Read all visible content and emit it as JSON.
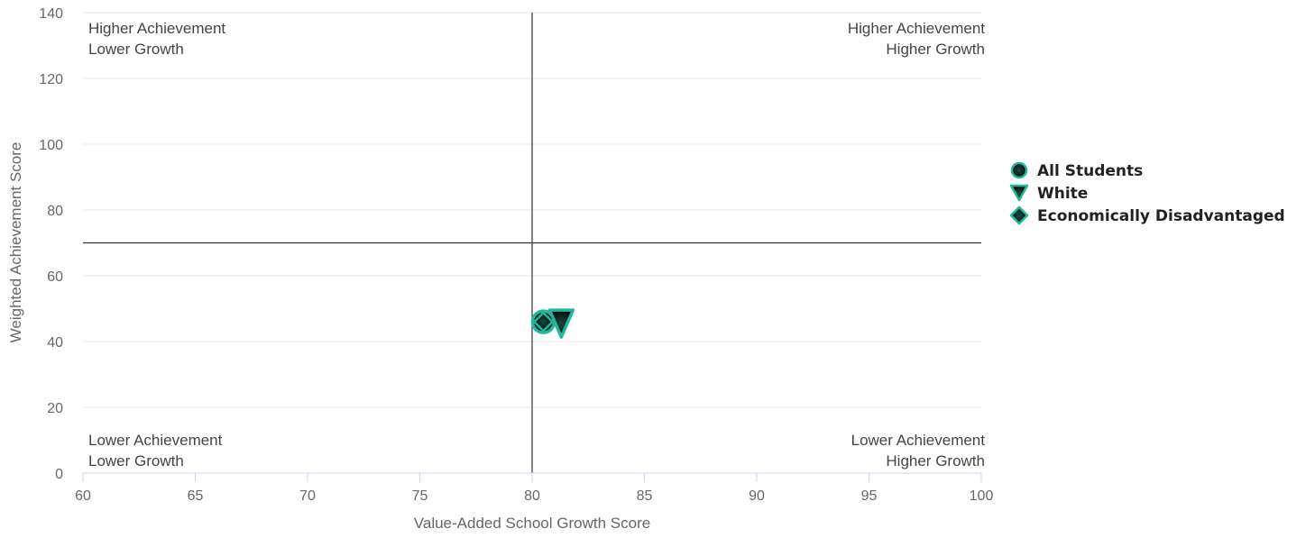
{
  "chart_data": {
    "type": "scatter",
    "xlabel": "Value-Added School Growth Score",
    "ylabel": "Weighted Achievement Score",
    "xlim": [
      60,
      100
    ],
    "ylim": [
      0,
      140
    ],
    "x_ticks": [
      "60",
      "65",
      "70",
      "75",
      "80",
      "85",
      "90",
      "95",
      "100"
    ],
    "y_ticks": [
      "0",
      "20",
      "40",
      "60",
      "80",
      "100",
      "120",
      "140"
    ],
    "grid": "horizontal",
    "reference_lines": {
      "x": 80,
      "y": 70
    },
    "quadrant_labels": {
      "top_left": [
        "Higher Achievement",
        "Lower Growth"
      ],
      "top_right": [
        "Higher Achievement",
        "Higher Growth"
      ],
      "bottom_left": [
        "Lower Achievement",
        "Lower Growth"
      ],
      "bottom_right": [
        "Lower Achievement",
        "Higher Growth"
      ]
    },
    "legend_position": "right",
    "series": [
      {
        "name": "All Students",
        "marker": "circle",
        "x": 80.5,
        "y": 46
      },
      {
        "name": "White",
        "marker": "triangle-down",
        "x": 81.3,
        "y": 46
      },
      {
        "name": "Economically Disadvantaged",
        "marker": "diamond",
        "x": 80.5,
        "y": 46
      }
    ],
    "colors": {
      "marker_stroke": "#1fb89a",
      "marker_fill_center": "#1a4a42",
      "marker_fill_edge": "#000000",
      "refline": "#333333",
      "grid": "#e6e6e6"
    }
  }
}
